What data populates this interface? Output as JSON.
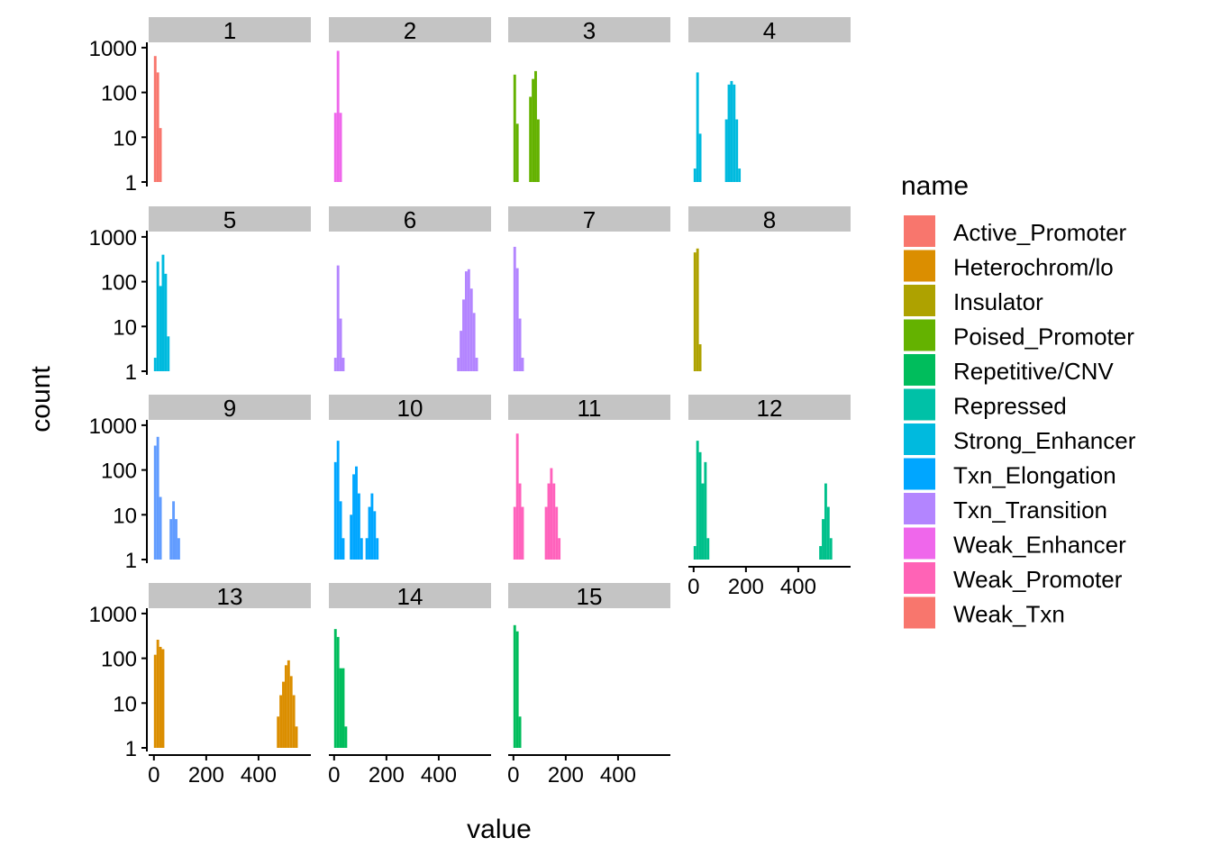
{
  "chart_data": {
    "type": "bar",
    "subtype": "faceted histogram",
    "xlabel": "value",
    "ylabel": "count",
    "y_scale": "log10",
    "ylim": [
      1,
      1000
    ],
    "xlim": [
      -20,
      600
    ],
    "x_ticks": [
      "0",
      "200",
      "400"
    ],
    "y_ticks": [
      "1",
      "10",
      "100",
      "1000"
    ],
    "grid": false,
    "legend": {
      "title": "name",
      "placement": "right",
      "entries": [
        {
          "label": "Active_Promoter",
          "color": "#F8766D"
        },
        {
          "label": "Heterochrom/lo",
          "color": "#DB8E00"
        },
        {
          "label": "Insulator",
          "color": "#AEA200"
        },
        {
          "label": "Poised_Promoter",
          "color": "#64B200"
        },
        {
          "label": "Repetitive/CNV",
          "color": "#00BD5C"
        },
        {
          "label": "Repressed",
          "color": "#00C1A7"
        },
        {
          "label": "Strong_Enhancer",
          "color": "#00BADE"
        },
        {
          "label": "Txn_Elongation",
          "color": "#00A6FF"
        },
        {
          "label": "Txn_Transition",
          "color": "#B385FF"
        },
        {
          "label": "Weak_Enhancer",
          "color": "#EF67EB"
        },
        {
          "label": "Weak_Promoter",
          "color": "#FF63B6"
        },
        {
          "label": "Weak_Txn",
          "color": "#F8766D"
        }
      ]
    },
    "panels": [
      {
        "label": "1",
        "color": "#F8766D",
        "bins": [
          [
            0,
            650
          ],
          [
            10,
            280
          ],
          [
            20,
            16
          ]
        ]
      },
      {
        "label": "2",
        "color": "#EF67EB",
        "bins": [
          [
            0,
            35
          ],
          [
            10,
            850
          ],
          [
            20,
            35
          ]
        ]
      },
      {
        "label": "3",
        "color": "#64B200",
        "bins": [
          [
            0,
            250
          ],
          [
            10,
            20
          ],
          [
            60,
            80
          ],
          [
            70,
            200
          ],
          [
            80,
            300
          ],
          [
            90,
            25
          ]
        ]
      },
      {
        "label": "4",
        "color": "#00BADE",
        "bins": [
          [
            0,
            2
          ],
          [
            10,
            280
          ],
          [
            20,
            12
          ],
          [
            120,
            25
          ],
          [
            130,
            150
          ],
          [
            140,
            180
          ],
          [
            150,
            150
          ],
          [
            160,
            25
          ],
          [
            170,
            2
          ]
        ]
      },
      {
        "label": "5",
        "color": "#00BADE",
        "bins": [
          [
            0,
            2
          ],
          [
            10,
            280
          ],
          [
            20,
            80
          ],
          [
            30,
            400
          ],
          [
            40,
            150
          ],
          [
            50,
            6
          ]
        ]
      },
      {
        "label": "6",
        "color": "#B385FF",
        "bins": [
          [
            0,
            2
          ],
          [
            10,
            230
          ],
          [
            20,
            15
          ],
          [
            30,
            2
          ],
          [
            470,
            2
          ],
          [
            480,
            8
          ],
          [
            490,
            40
          ],
          [
            500,
            170
          ],
          [
            510,
            190
          ],
          [
            520,
            70
          ],
          [
            530,
            20
          ],
          [
            540,
            2
          ]
        ]
      },
      {
        "label": "7",
        "color": "#B385FF",
        "bins": [
          [
            0,
            600
          ],
          [
            10,
            200
          ],
          [
            20,
            15
          ],
          [
            30,
            2
          ]
        ]
      },
      {
        "label": "8",
        "color": "#AEA200",
        "bins": [
          [
            0,
            450
          ],
          [
            10,
            550
          ],
          [
            20,
            4
          ]
        ]
      },
      {
        "label": "9",
        "color": "#619CFF",
        "bins": [
          [
            0,
            350
          ],
          [
            10,
            550
          ],
          [
            20,
            25
          ],
          [
            60,
            8
          ],
          [
            70,
            20
          ],
          [
            80,
            8
          ],
          [
            90,
            3
          ]
        ]
      },
      {
        "label": "10",
        "color": "#00A6FF",
        "bins": [
          [
            0,
            150
          ],
          [
            10,
            450
          ],
          [
            20,
            20
          ],
          [
            30,
            3
          ],
          [
            60,
            10
          ],
          [
            70,
            80
          ],
          [
            80,
            120
          ],
          [
            90,
            30
          ],
          [
            100,
            3
          ],
          [
            120,
            3
          ],
          [
            130,
            15
          ],
          [
            140,
            30
          ],
          [
            150,
            12
          ],
          [
            160,
            3
          ]
        ]
      },
      {
        "label": "11",
        "color": "#FF62BC",
        "bins": [
          [
            0,
            15
          ],
          [
            10,
            650
          ],
          [
            20,
            50
          ],
          [
            30,
            15
          ],
          [
            120,
            15
          ],
          [
            130,
            50
          ],
          [
            140,
            110
          ],
          [
            150,
            50
          ],
          [
            160,
            15
          ],
          [
            170,
            3
          ]
        ]
      },
      {
        "label": "12",
        "color": "#00C08B",
        "bins": [
          [
            0,
            2
          ],
          [
            10,
            450
          ],
          [
            20,
            250
          ],
          [
            30,
            50
          ],
          [
            40,
            150
          ],
          [
            50,
            3
          ],
          [
            480,
            2
          ],
          [
            490,
            8
          ],
          [
            500,
            50
          ],
          [
            510,
            15
          ],
          [
            520,
            3
          ]
        ]
      },
      {
        "label": "13",
        "color": "#DB8E00",
        "bins": [
          [
            0,
            120
          ],
          [
            10,
            260
          ],
          [
            20,
            180
          ],
          [
            30,
            160
          ],
          [
            470,
            5
          ],
          [
            480,
            15
          ],
          [
            490,
            30
          ],
          [
            500,
            70
          ],
          [
            510,
            90
          ],
          [
            520,
            40
          ],
          [
            530,
            15
          ],
          [
            540,
            3
          ]
        ]
      },
      {
        "label": "14",
        "color": "#00BD5C",
        "bins": [
          [
            0,
            450
          ],
          [
            10,
            300
          ],
          [
            20,
            60
          ],
          [
            30,
            60
          ],
          [
            40,
            3
          ]
        ]
      },
      {
        "label": "15",
        "color": "#00BD5C",
        "bins": [
          [
            0,
            550
          ],
          [
            10,
            400
          ],
          [
            20,
            5
          ]
        ]
      }
    ]
  }
}
